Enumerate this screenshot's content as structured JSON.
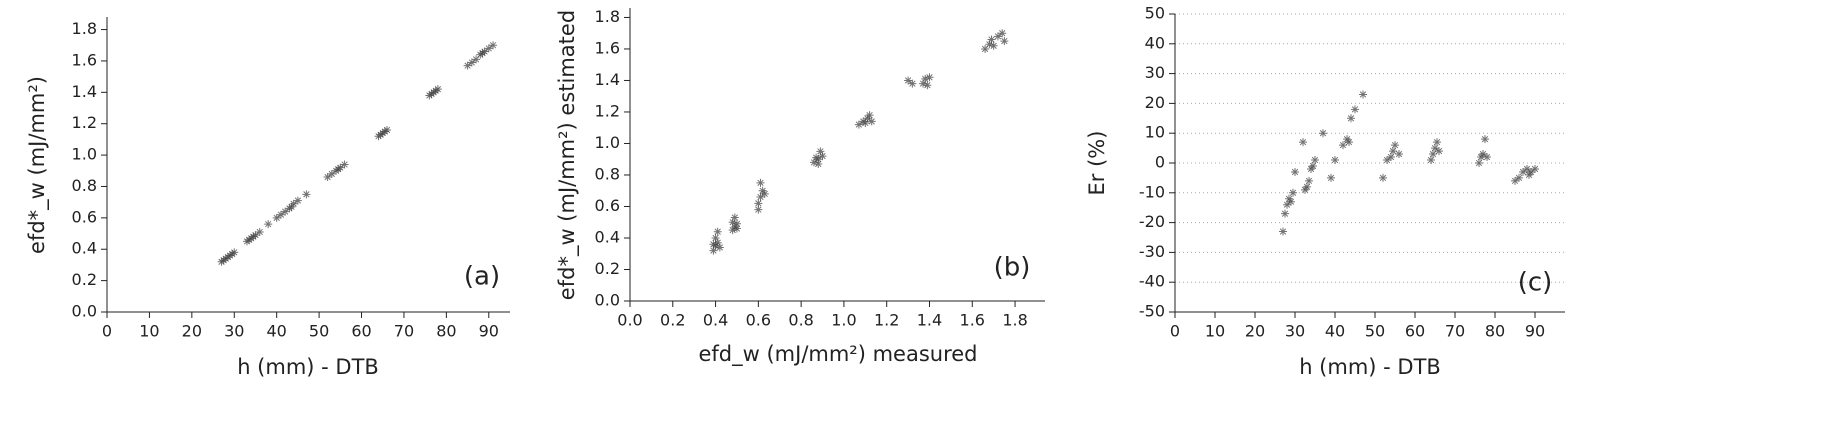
{
  "chart_data": [
    {
      "type": "scatter",
      "x_label": "h (mm) - DTB",
      "y_label": "efd*_w  (mJ/mm²)",
      "annotation": "(a)",
      "xlim": [
        0,
        95
      ],
      "ylim": [
        0,
        1.88
      ],
      "grid": false,
      "xticks": [
        0,
        10,
        20,
        30,
        40,
        50,
        60,
        70,
        80,
        90
      ],
      "yticks": [
        {
          "value": 0,
          "label": "0.0"
        },
        0.2,
        0.4,
        0.6,
        0.8,
        {
          "value": 1,
          "label": "1.0"
        },
        1.2,
        1.4,
        1.6,
        1.8
      ],
      "series": [
        {
          "color": "#444444",
          "x": [
            27,
            27.5,
            28,
            28.5,
            29,
            29.5,
            30,
            33,
            33.5,
            34,
            34.5,
            35,
            36,
            38,
            40,
            41,
            42,
            43,
            43.5,
            44,
            45,
            47,
            52,
            53,
            54,
            54.5,
            55,
            56,
            64,
            64.5,
            65,
            65.5,
            66,
            76,
            76.5,
            77,
            77.5,
            78,
            85,
            86,
            87,
            88,
            88.5,
            89,
            90,
            91
          ],
          "values": [
            0.32,
            0.33,
            0.34,
            0.35,
            0.36,
            0.37,
            0.38,
            0.45,
            0.46,
            0.47,
            0.48,
            0.49,
            0.51,
            0.56,
            0.6,
            0.62,
            0.64,
            0.66,
            0.67,
            0.69,
            0.71,
            0.75,
            0.86,
            0.88,
            0.9,
            0.91,
            0.92,
            0.94,
            1.12,
            1.13,
            1.14,
            1.15,
            1.16,
            1.38,
            1.39,
            1.4,
            1.41,
            1.42,
            1.57,
            1.59,
            1.61,
            1.64,
            1.65,
            1.66,
            1.68,
            1.7
          ]
        }
      ]
    },
    {
      "type": "scatter",
      "x_label": "efd_w (mJ/mm²) measured",
      "y_label": "efd*_w  (mJ/mm²) estimated",
      "annotation": "(b)",
      "xlim": [
        0,
        1.94
      ],
      "ylim": [
        0,
        1.86
      ],
      "grid": false,
      "xticks": [
        {
          "value": 0,
          "label": "0.0"
        },
        0.2,
        0.4,
        0.6,
        0.8,
        {
          "value": 1,
          "label": "1.0"
        },
        1.2,
        1.4,
        1.6,
        1.8
      ],
      "yticks": [
        {
          "value": 0,
          "label": "0.0"
        },
        0.2,
        0.4,
        0.6,
        0.8,
        {
          "value": 1,
          "label": "1.0"
        },
        1.2,
        1.4,
        1.6,
        1.8
      ],
      "series": [
        {
          "color": "#444444",
          "x": [
            0.39,
            0.4,
            0.41,
            0.4,
            0.42,
            0.41,
            0.39,
            0.48,
            0.49,
            0.5,
            0.49,
            0.5,
            0.48,
            0.6,
            0.61,
            0.62,
            0.61,
            0.63,
            0.6,
            0.86,
            0.87,
            0.88,
            0.89,
            0.9,
            0.88,
            1.07,
            1.09,
            1.1,
            1.11,
            1.12,
            1.13,
            1.3,
            1.32,
            1.37,
            1.38,
            1.39,
            1.4,
            1.66,
            1.68,
            1.69,
            1.7,
            1.72,
            1.74,
            1.75
          ],
          "values": [
            0.32,
            0.35,
            0.37,
            0.4,
            0.34,
            0.44,
            0.36,
            0.45,
            0.47,
            0.49,
            0.53,
            0.46,
            0.5,
            0.62,
            0.66,
            0.7,
            0.75,
            0.68,
            0.58,
            0.88,
            0.91,
            0.9,
            0.95,
            0.92,
            0.87,
            1.12,
            1.14,
            1.13,
            1.16,
            1.18,
            1.14,
            1.4,
            1.38,
            1.38,
            1.41,
            1.37,
            1.42,
            1.6,
            1.63,
            1.66,
            1.62,
            1.68,
            1.7,
            1.65
          ]
        }
      ]
    },
    {
      "type": "scatter",
      "x_label": "h (mm) - DTB",
      "y_label": "Er (%)",
      "annotation": "(c)",
      "xlim": [
        0,
        97.5
      ],
      "ylim": [
        -50,
        50
      ],
      "grid": true,
      "xticks": [
        0,
        10,
        20,
        30,
        40,
        50,
        60,
        70,
        80,
        90
      ],
      "yticks": [
        -50,
        -40,
        -30,
        -20,
        -10,
        0,
        10,
        20,
        30,
        40,
        50
      ],
      "series": [
        {
          "color": "#444444",
          "x": [
            27,
            27.5,
            28,
            28.5,
            29,
            29.5,
            30,
            32,
            32.5,
            33,
            33.5,
            34,
            34.5,
            35,
            37,
            39,
            40,
            42,
            43,
            43.5,
            44,
            45,
            47,
            52,
            53,
            54,
            54.5,
            55,
            56,
            64,
            64.5,
            65,
            65.5,
            66,
            76,
            76.5,
            77,
            77.5,
            78,
            85,
            86,
            87,
            88,
            88.5,
            89,
            90
          ],
          "values": [
            -23,
            -17,
            -14,
            -12,
            -13,
            -10,
            -3,
            7,
            -9,
            -8,
            -6,
            -2,
            -1,
            1,
            10,
            -5,
            1,
            6,
            8,
            7,
            15,
            18,
            23,
            -5,
            1,
            2,
            4,
            6,
            3,
            1,
            3,
            5,
            7,
            4,
            0,
            2,
            3,
            8,
            2,
            -6,
            -5,
            -3,
            -2,
            -4,
            -3,
            -2
          ]
        }
      ]
    }
  ]
}
